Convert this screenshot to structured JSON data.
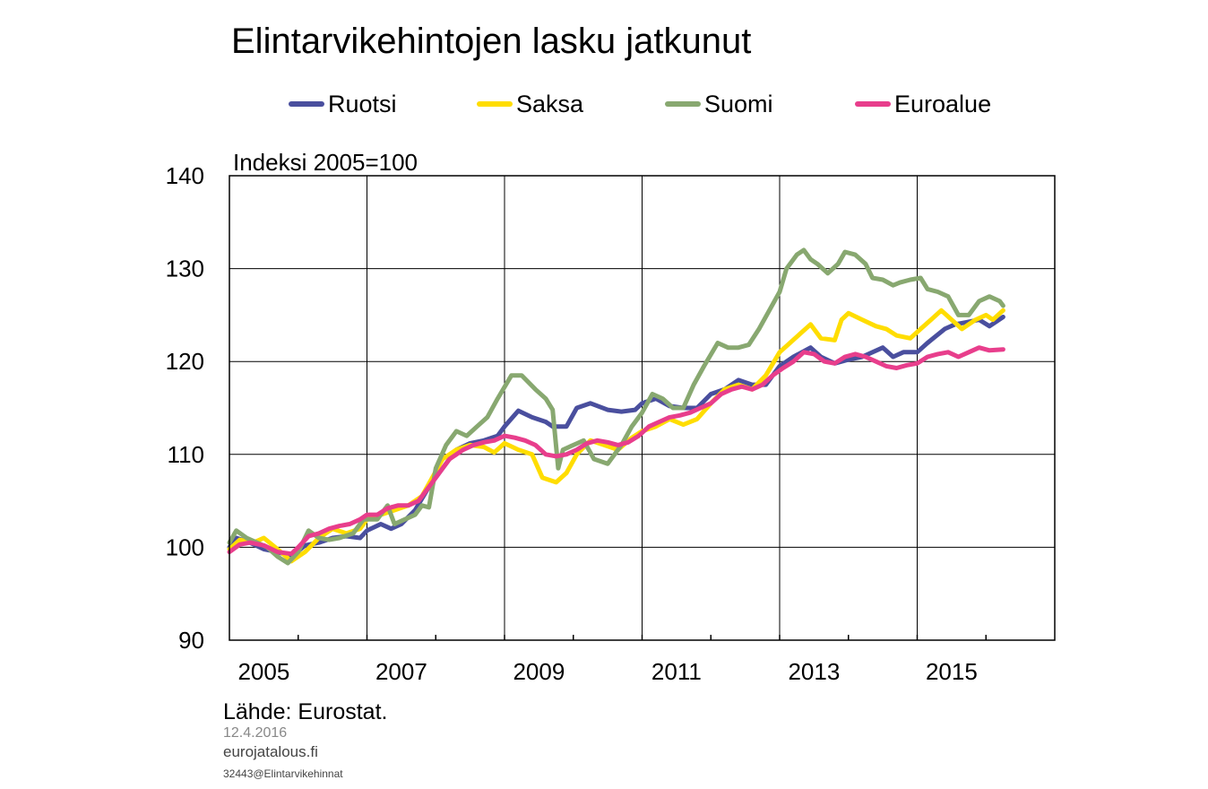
{
  "chart_data": {
    "type": "line",
    "title": "Elintarvikehintojen lasku jatkunut",
    "ylabel": "Indeksi 2005=100",
    "ylim": [
      90,
      140
    ],
    "yticks": [
      "140",
      "130",
      "120",
      "110",
      "100",
      "90"
    ],
    "xlim": [
      2005,
      2017
    ],
    "xticks": [
      "2005",
      "2007",
      "2009",
      "2011",
      "2013",
      "2015"
    ],
    "grid": true,
    "legend_position": "top",
    "source": "Lähde: Eurostat.",
    "date": "12.4.2016",
    "site": "eurojatalous.fi",
    "code": "32443@Elintarvikehinnat",
    "series": [
      {
        "name": "Ruotsi",
        "color": "#4a4f9e",
        "points": [
          [
            2005.0,
            100.0
          ],
          [
            2005.1,
            101.0
          ],
          [
            2005.3,
            100.5
          ],
          [
            2005.5,
            99.8
          ],
          [
            2005.7,
            99.5
          ],
          [
            2005.9,
            99.0
          ],
          [
            2006.1,
            100.2
          ],
          [
            2006.3,
            100.5
          ],
          [
            2006.5,
            101.0
          ],
          [
            2006.7,
            101.2
          ],
          [
            2006.9,
            101.0
          ],
          [
            2007.0,
            101.8
          ],
          [
            2007.2,
            102.5
          ],
          [
            2007.35,
            102.0
          ],
          [
            2007.5,
            102.5
          ],
          [
            2007.7,
            104.0
          ],
          [
            2007.9,
            106.5
          ],
          [
            2008.1,
            108.5
          ],
          [
            2008.3,
            110.5
          ],
          [
            2008.5,
            111.2
          ],
          [
            2008.7,
            111.5
          ],
          [
            2008.9,
            112.0
          ],
          [
            2009.0,
            113.0
          ],
          [
            2009.2,
            114.7
          ],
          [
            2009.4,
            114.0
          ],
          [
            2009.6,
            113.5
          ],
          [
            2009.7,
            113.0
          ],
          [
            2009.9,
            113.0
          ],
          [
            2010.05,
            115.0
          ],
          [
            2010.25,
            115.5
          ],
          [
            2010.5,
            114.8
          ],
          [
            2010.7,
            114.6
          ],
          [
            2010.9,
            114.8
          ],
          [
            2011.0,
            115.5
          ],
          [
            2011.2,
            116.0
          ],
          [
            2011.4,
            115.2
          ],
          [
            2011.6,
            115.0
          ],
          [
            2011.8,
            115.0
          ],
          [
            2012.0,
            116.5
          ],
          [
            2012.2,
            117.0
          ],
          [
            2012.4,
            118.0
          ],
          [
            2012.6,
            117.5
          ],
          [
            2012.8,
            117.5
          ],
          [
            2013.0,
            119.5
          ],
          [
            2013.2,
            120.5
          ],
          [
            2013.45,
            121.5
          ],
          [
            2013.6,
            120.5
          ],
          [
            2013.8,
            119.8
          ],
          [
            2014.0,
            120.2
          ],
          [
            2014.2,
            120.5
          ],
          [
            2014.5,
            121.5
          ],
          [
            2014.65,
            120.5
          ],
          [
            2014.8,
            121.0
          ],
          [
            2015.0,
            121.0
          ],
          [
            2015.15,
            122.0
          ],
          [
            2015.4,
            123.5
          ],
          [
            2015.55,
            124.0
          ],
          [
            2015.7,
            124.2
          ],
          [
            2015.9,
            124.5
          ],
          [
            2016.05,
            123.8
          ],
          [
            2016.15,
            124.3
          ],
          [
            2016.25,
            124.8
          ]
        ]
      },
      {
        "name": "Saksa",
        "color": "#ffdd00",
        "points": [
          [
            2005.0,
            99.8
          ],
          [
            2005.15,
            100.8
          ],
          [
            2005.35,
            100.5
          ],
          [
            2005.5,
            101.0
          ],
          [
            2005.7,
            99.8
          ],
          [
            2005.9,
            98.5
          ],
          [
            2006.1,
            99.5
          ],
          [
            2006.3,
            101.0
          ],
          [
            2006.5,
            102.0
          ],
          [
            2006.7,
            101.5
          ],
          [
            2006.9,
            102.0
          ],
          [
            2007.0,
            103.0
          ],
          [
            2007.2,
            103.5
          ],
          [
            2007.4,
            104.0
          ],
          [
            2007.6,
            104.5
          ],
          [
            2007.8,
            105.5
          ],
          [
            2007.95,
            107.5
          ],
          [
            2008.1,
            109.5
          ],
          [
            2008.3,
            110.5
          ],
          [
            2008.5,
            111.0
          ],
          [
            2008.7,
            110.8
          ],
          [
            2008.85,
            110.2
          ],
          [
            2009.0,
            111.2
          ],
          [
            2009.2,
            110.5
          ],
          [
            2009.4,
            110.0
          ],
          [
            2009.55,
            107.5
          ],
          [
            2009.75,
            107.0
          ],
          [
            2009.9,
            108.0
          ],
          [
            2010.05,
            110.0
          ],
          [
            2010.25,
            111.5
          ],
          [
            2010.45,
            111.0
          ],
          [
            2010.65,
            110.5
          ],
          [
            2010.85,
            111.8
          ],
          [
            2011.0,
            112.5
          ],
          [
            2011.2,
            113.0
          ],
          [
            2011.4,
            113.8
          ],
          [
            2011.6,
            113.2
          ],
          [
            2011.8,
            113.8
          ],
          [
            2012.0,
            115.5
          ],
          [
            2012.2,
            117.0
          ],
          [
            2012.4,
            117.5
          ],
          [
            2012.6,
            117.0
          ],
          [
            2012.8,
            118.5
          ],
          [
            2013.0,
            121.0
          ],
          [
            2013.15,
            122.0
          ],
          [
            2013.3,
            123.0
          ],
          [
            2013.45,
            124.0
          ],
          [
            2013.6,
            122.5
          ],
          [
            2013.8,
            122.3
          ],
          [
            2013.9,
            124.5
          ],
          [
            2014.0,
            125.2
          ],
          [
            2014.2,
            124.5
          ],
          [
            2014.4,
            123.8
          ],
          [
            2014.55,
            123.5
          ],
          [
            2014.7,
            122.8
          ],
          [
            2014.9,
            122.5
          ],
          [
            2015.05,
            123.5
          ],
          [
            2015.2,
            124.5
          ],
          [
            2015.35,
            125.5
          ],
          [
            2015.5,
            124.5
          ],
          [
            2015.65,
            123.5
          ],
          [
            2015.85,
            124.5
          ],
          [
            2016.0,
            125.0
          ],
          [
            2016.1,
            124.5
          ],
          [
            2016.25,
            125.5
          ]
        ]
      },
      {
        "name": "Suomi",
        "color": "#88a870",
        "points": [
          [
            2005.0,
            100.5
          ],
          [
            2005.1,
            101.8
          ],
          [
            2005.25,
            101.0
          ],
          [
            2005.4,
            100.5
          ],
          [
            2005.55,
            100.0
          ],
          [
            2005.7,
            99.0
          ],
          [
            2005.85,
            98.3
          ],
          [
            2006.0,
            99.5
          ],
          [
            2006.15,
            101.8
          ],
          [
            2006.3,
            101.0
          ],
          [
            2006.45,
            100.8
          ],
          [
            2006.6,
            101.0
          ],
          [
            2006.8,
            101.5
          ],
          [
            2006.95,
            103.0
          ],
          [
            2007.15,
            103.0
          ],
          [
            2007.3,
            104.5
          ],
          [
            2007.4,
            102.5
          ],
          [
            2007.55,
            103.0
          ],
          [
            2007.7,
            103.5
          ],
          [
            2007.8,
            104.5
          ],
          [
            2007.9,
            104.3
          ],
          [
            2008.0,
            108.5
          ],
          [
            2008.15,
            111.0
          ],
          [
            2008.3,
            112.5
          ],
          [
            2008.45,
            112.0
          ],
          [
            2008.6,
            113.0
          ],
          [
            2008.75,
            114.0
          ],
          [
            2008.9,
            116.0
          ],
          [
            2009.1,
            118.5
          ],
          [
            2009.25,
            118.5
          ],
          [
            2009.45,
            117.0
          ],
          [
            2009.6,
            116.0
          ],
          [
            2009.7,
            114.8
          ],
          [
            2009.78,
            108.5
          ],
          [
            2009.85,
            110.5
          ],
          [
            2010.0,
            111.0
          ],
          [
            2010.15,
            111.5
          ],
          [
            2010.3,
            109.5
          ],
          [
            2010.5,
            109.0
          ],
          [
            2010.7,
            111.0
          ],
          [
            2010.85,
            113.0
          ],
          [
            2011.0,
            114.5
          ],
          [
            2011.15,
            116.5
          ],
          [
            2011.3,
            116.0
          ],
          [
            2011.45,
            115.0
          ],
          [
            2011.6,
            115.0
          ],
          [
            2011.75,
            117.5
          ],
          [
            2011.9,
            119.5
          ],
          [
            2012.1,
            122.0
          ],
          [
            2012.25,
            121.5
          ],
          [
            2012.4,
            121.5
          ],
          [
            2012.55,
            121.8
          ],
          [
            2012.7,
            123.5
          ],
          [
            2012.85,
            125.5
          ],
          [
            2013.0,
            127.5
          ],
          [
            2013.1,
            130.0
          ],
          [
            2013.25,
            131.5
          ],
          [
            2013.35,
            132.0
          ],
          [
            2013.45,
            131.0
          ],
          [
            2013.55,
            130.5
          ],
          [
            2013.7,
            129.5
          ],
          [
            2013.85,
            130.5
          ],
          [
            2013.95,
            131.8
          ],
          [
            2014.1,
            131.5
          ],
          [
            2014.25,
            130.5
          ],
          [
            2014.35,
            129.0
          ],
          [
            2014.5,
            128.8
          ],
          [
            2014.65,
            128.2
          ],
          [
            2014.75,
            128.5
          ],
          [
            2014.9,
            128.8
          ],
          [
            2015.05,
            129.0
          ],
          [
            2015.15,
            127.8
          ],
          [
            2015.3,
            127.5
          ],
          [
            2015.45,
            127.0
          ],
          [
            2015.6,
            125.0
          ],
          [
            2015.75,
            125.0
          ],
          [
            2015.9,
            126.5
          ],
          [
            2016.05,
            127.0
          ],
          [
            2016.2,
            126.5
          ],
          [
            2016.25,
            126.0
          ]
        ]
      },
      {
        "name": "Euroalue",
        "color": "#e83e8c",
        "points": [
          [
            2005.0,
            99.5
          ],
          [
            2005.15,
            100.3
          ],
          [
            2005.3,
            100.5
          ],
          [
            2005.5,
            100.2
          ],
          [
            2005.7,
            99.5
          ],
          [
            2005.9,
            99.3
          ],
          [
            2006.0,
            100.0
          ],
          [
            2006.15,
            101.2
          ],
          [
            2006.3,
            101.5
          ],
          [
            2006.45,
            102.0
          ],
          [
            2006.6,
            102.3
          ],
          [
            2006.75,
            102.5
          ],
          [
            2006.9,
            103.0
          ],
          [
            2007.0,
            103.5
          ],
          [
            2007.15,
            103.5
          ],
          [
            2007.3,
            104.2
          ],
          [
            2007.45,
            104.5
          ],
          [
            2007.6,
            104.5
          ],
          [
            2007.75,
            105.0
          ],
          [
            2007.9,
            106.5
          ],
          [
            2008.05,
            108.0
          ],
          [
            2008.2,
            109.5
          ],
          [
            2008.4,
            110.5
          ],
          [
            2008.55,
            111.0
          ],
          [
            2008.7,
            111.3
          ],
          [
            2008.85,
            111.5
          ],
          [
            2009.0,
            112.0
          ],
          [
            2009.15,
            111.8
          ],
          [
            2009.3,
            111.5
          ],
          [
            2009.45,
            111.0
          ],
          [
            2009.6,
            110.0
          ],
          [
            2009.75,
            109.8
          ],
          [
            2009.9,
            110.0
          ],
          [
            2010.05,
            110.5
          ],
          [
            2010.2,
            111.2
          ],
          [
            2010.35,
            111.5
          ],
          [
            2010.5,
            111.3
          ],
          [
            2010.65,
            111.0
          ],
          [
            2010.8,
            111.3
          ],
          [
            2010.95,
            112.0
          ],
          [
            2011.1,
            113.0
          ],
          [
            2011.25,
            113.5
          ],
          [
            2011.4,
            114.0
          ],
          [
            2011.55,
            114.2
          ],
          [
            2011.7,
            114.5
          ],
          [
            2011.85,
            115.0
          ],
          [
            2012.0,
            115.5
          ],
          [
            2012.15,
            116.5
          ],
          [
            2012.3,
            117.0
          ],
          [
            2012.45,
            117.3
          ],
          [
            2012.6,
            117.0
          ],
          [
            2012.75,
            117.5
          ],
          [
            2012.9,
            118.5
          ],
          [
            2013.05,
            119.3
          ],
          [
            2013.2,
            120.0
          ],
          [
            2013.35,
            121.0
          ],
          [
            2013.5,
            120.8
          ],
          [
            2013.65,
            120.0
          ],
          [
            2013.8,
            119.8
          ],
          [
            2013.95,
            120.5
          ],
          [
            2014.1,
            120.8
          ],
          [
            2014.25,
            120.5
          ],
          [
            2014.4,
            120.0
          ],
          [
            2014.55,
            119.5
          ],
          [
            2014.7,
            119.3
          ],
          [
            2014.85,
            119.6
          ],
          [
            2015.0,
            119.8
          ],
          [
            2015.15,
            120.5
          ],
          [
            2015.3,
            120.8
          ],
          [
            2015.45,
            121.0
          ],
          [
            2015.6,
            120.5
          ],
          [
            2015.75,
            121.0
          ],
          [
            2015.9,
            121.5
          ],
          [
            2016.05,
            121.2
          ],
          [
            2016.25,
            121.3
          ]
        ]
      }
    ]
  }
}
